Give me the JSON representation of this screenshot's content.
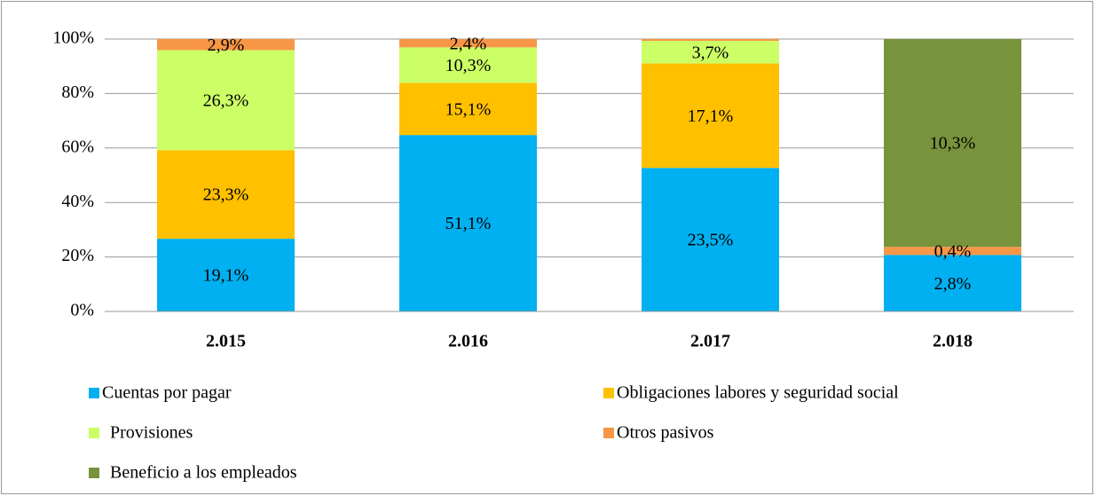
{
  "chart_data": {
    "type": "bar",
    "stacking": "percent",
    "categories": [
      "2.015",
      "2.016",
      "2.017",
      "2.018"
    ],
    "series": [
      {
        "name": "Cuentas por pagar",
        "color": "#00b0f0",
        "values": [
          19.1,
          51.1,
          23.5,
          2.8
        ],
        "value_labels": [
          "19,1%",
          "51,1%",
          "23,5%",
          "2,8%"
        ]
      },
      {
        "name": "Obligaciones labores y seguridad social",
        "color": "#ffc000",
        "values": [
          23.3,
          15.1,
          17.1,
          null
        ],
        "value_labels": [
          "23,3%",
          "15,1%",
          "17,1%",
          null
        ]
      },
      {
        "name": "Provisiones",
        "color": "#ccff66",
        "values": [
          26.3,
          10.3,
          3.7,
          null
        ],
        "value_labels": [
          "26,3%",
          "10,3%",
          "3,7%",
          null
        ]
      },
      {
        "name": "Otros pasivos",
        "color": "#f79646",
        "values": [
          2.9,
          2.4,
          0.3,
          0.4
        ],
        "value_labels": [
          "2,9%",
          "2,4%",
          null,
          "0,4%"
        ]
      },
      {
        "name": "Beneficio a los empleados",
        "color": "#77933c",
        "values": [
          null,
          null,
          null,
          10.3
        ],
        "value_labels": [
          null,
          null,
          null,
          "10,3%"
        ]
      }
    ],
    "ylim": [
      0,
      100
    ],
    "yticks": [
      {
        "value": 0,
        "label": "0%"
      },
      {
        "value": 20,
        "label": "20%"
      },
      {
        "value": 40,
        "label": "40%"
      },
      {
        "value": 60,
        "label": "60%"
      },
      {
        "value": 80,
        "label": "80%"
      },
      {
        "value": 100,
        "label": "100%"
      }
    ],
    "grid": true
  }
}
